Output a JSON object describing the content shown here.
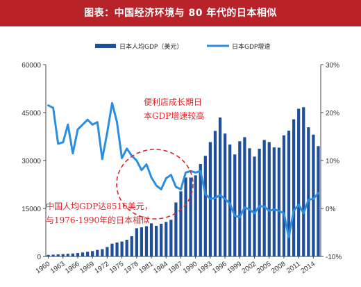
{
  "header": {
    "title": "图表：中国经济环境与 80 年代的日本相似"
  },
  "chart_data": {
    "type": "bar+line",
    "title": "图表：中国经济环境与 80 年代的日本相似",
    "y_left": {
      "ylim": [
        0,
        60000
      ],
      "ticks": [
        "0",
        "15000",
        "30000",
        "45000",
        "60000"
      ]
    },
    "y_right": {
      "ylim": [
        -10,
        30
      ],
      "ticks": [
        "-10%",
        "0%",
        "10%",
        "20%",
        "30%"
      ]
    },
    "x_ticks": [
      "1960",
      "1963",
      "1966",
      "1969",
      "1972",
      "1975",
      "1978",
      "1981",
      "1984",
      "1987",
      "1990",
      "1993",
      "1996",
      "1999",
      "2002",
      "2005",
      "2008",
      "2011",
      "2014"
    ],
    "x": [
      1960,
      1961,
      1962,
      1963,
      1964,
      1965,
      1966,
      1967,
      1968,
      1969,
      1970,
      1971,
      1972,
      1973,
      1974,
      1975,
      1976,
      1977,
      1978,
      1979,
      1980,
      1981,
      1982,
      1983,
      1984,
      1985,
      1986,
      1987,
      1988,
      1989,
      1990,
      1991,
      1992,
      1993,
      1994,
      1995,
      1996,
      1997,
      1998,
      1999,
      2000,
      2001,
      2002,
      2003,
      2004,
      2005,
      2006,
      2007,
      2008,
      2009,
      2010,
      2011,
      2012,
      2013,
      2014,
      2015
    ],
    "legend_position": "top",
    "series": [
      {
        "name": "日本人均GDP（美元）",
        "type": "bar",
        "axis": "left",
        "color": "#1f4e9a",
        "values": [
          480,
          560,
          630,
          720,
          840,
          920,
          1060,
          1230,
          1450,
          1670,
          2040,
          2270,
          2950,
          3990,
          4350,
          4660,
          5200,
          6330,
          8820,
          9100,
          9460,
          10360,
          9580,
          10210,
          10790,
          11460,
          16880,
          20360,
          24700,
          24690,
          25360,
          28920,
          31460,
          35770,
          39270,
          43440,
          38440,
          35020,
          31900,
          36030,
          37300,
          33850,
          31240,
          33690,
          36440,
          35780,
          34100,
          34030,
          37870,
          39320,
          42910,
          46200,
          46680,
          40400,
          38100,
          34500
        ]
      },
      {
        "name": "日本GDP增速",
        "type": "line",
        "axis": "right",
        "color": "#2a8de0",
        "values": [
          21.5,
          21.0,
          13.5,
          13.8,
          17.5,
          11.5,
          16.5,
          17.5,
          18.5,
          17.5,
          18.0,
          10.3,
          15.8,
          22.0,
          18.0,
          10.5,
          12.5,
          11.0,
          10.0,
          8.0,
          9.2,
          6.5,
          4.8,
          4.0,
          6.3,
          7.0,
          4.5,
          4.0,
          7.5,
          7.8,
          7.5,
          7.8,
          3.0,
          2.0,
          2.2,
          2.8,
          2.0,
          1.0,
          -1.5,
          -1.8,
          0.2,
          -0.2,
          -1.0,
          0.5,
          0.4,
          -0.5,
          -0.2,
          -0.5,
          -1.0,
          -6.0,
          -0.5,
          0.8,
          -1.0,
          1.8,
          2.0,
          3.2
        ]
      }
    ],
    "annotations": [
      {
        "text_lines": [
          "便利店成长期日",
          "本GDP增速较高"
        ]
      },
      {
        "text_lines": [
          "中国人均GDP达8516美元，",
          "与1976-1990年的日本相似"
        ]
      }
    ]
  }
}
